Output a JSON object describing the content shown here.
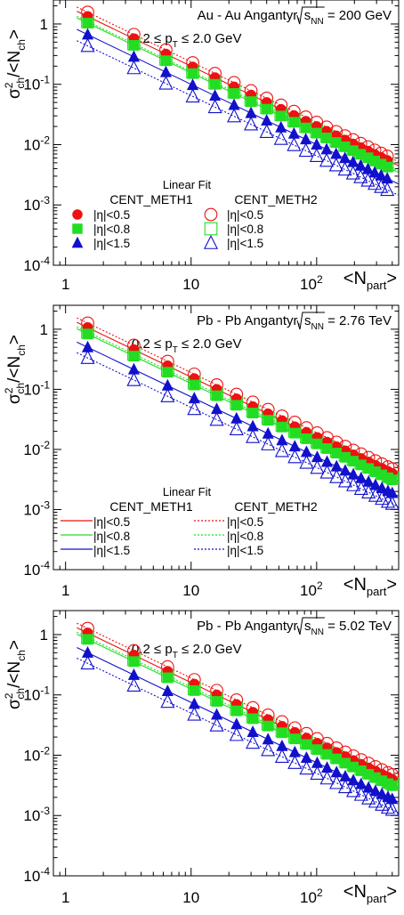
{
  "colors": {
    "eta05": "#ee1111",
    "eta08": "#22dd22",
    "eta15": "#1111cc",
    "axis": "#000000"
  },
  "marker_names": {
    "meth1": "filled markers",
    "meth2": "open markers"
  },
  "chart_data": [
    {
      "type": "scatter",
      "log_x": true,
      "log_y": true,
      "xlim": [
        0.8,
        450
      ],
      "ylim": [
        0.0001,
        2.5
      ],
      "x_ticks": [
        "1",
        "10"
      ],
      "x_tick_10e2_base": "10",
      "x_tick_10e2_exp": "2",
      "xlabel_main": "<N",
      "xlabel_sub": "part",
      "xlabel_end": ">",
      "ylabel_main": "σ",
      "ylabel_sup": "2",
      "ylabel_sub": "ch",
      "ylabel_mid": "/<N",
      "ylabel_sub2": "ch",
      "ylabel_end": ">",
      "y_tick_base": "10",
      "y_tick_exps": [
        "-1",
        "-2",
        "-3",
        "-4"
      ],
      "y_tick_one": "1",
      "title_pre": "Au - Au Angantyr,",
      "title_sqrt": "s",
      "title_sub": "NN",
      "title_post": " = 200 GeV",
      "cut_pre": "0.2 ≤ p",
      "cut_sub": "T",
      "cut_post": " ≤ 2.0 GeV",
      "legend": {
        "style": "markers",
        "heading": "Linear Fit",
        "col1": "CENT_METH1",
        "col2": "CENT_METH2",
        "rows": [
          "|η|<0.5",
          "|η|<0.8",
          "|η|<1.5"
        ]
      },
      "x": [
        1.5,
        3.5,
        6.3,
        10.3,
        15.5,
        22,
        30,
        40,
        52,
        66,
        82,
        100,
        120,
        143,
        168,
        195,
        224,
        256,
        290,
        326,
        365
      ],
      "series": [
        {
          "eta": "|η|<0.5",
          "method": "CENT_METH1",
          "a": 2.0,
          "b": 1.0
        },
        {
          "eta": "|η|<0.8",
          "method": "CENT_METH1",
          "a": 1.55,
          "b": 1.0
        },
        {
          "eta": "|η|<1.5",
          "method": "CENT_METH1",
          "a": 1.0,
          "b": 1.0
        },
        {
          "eta": "|η|<0.5",
          "method": "CENT_METH2",
          "a": 2.35,
          "b": 1.0
        },
        {
          "eta": "|η|<0.8",
          "method": "CENT_METH2",
          "a": 1.65,
          "b": 1.0
        },
        {
          "eta": "|η|<1.5",
          "method": "CENT_METH2",
          "a": 0.65,
          "b": 1.0
        }
      ]
    },
    {
      "type": "scatter",
      "log_x": true,
      "log_y": true,
      "xlim": [
        0.8,
        450
      ],
      "ylim": [
        0.0001,
        2.5
      ],
      "x_ticks": [
        "1",
        "10"
      ],
      "x_tick_10e2_base": "10",
      "x_tick_10e2_exp": "2",
      "xlabel_main": "<N",
      "xlabel_sub": "part",
      "xlabel_end": ">",
      "ylabel_main": "σ",
      "ylabel_sup": "2",
      "ylabel_sub": "ch",
      "ylabel_mid": "/<N",
      "ylabel_sub2": "ch",
      "ylabel_end": ">",
      "y_tick_base": "10",
      "y_tick_exps": [
        "-1",
        "-2",
        "-3",
        "-4"
      ],
      "y_tick_one": "1",
      "title_pre": "Pb - Pb Angantyr,",
      "title_sqrt": "s",
      "title_sub": "NN",
      "title_post": " = 2.76 TeV",
      "cut_pre": "0.2 ≤ p",
      "cut_sub": "T",
      "cut_post": " ≤ 2.0 GeV",
      "legend": {
        "style": "lines",
        "heading": "Linear Fit",
        "col1": "CENT_METH1",
        "col2": "CENT_METH2",
        "rows": [
          "|η|<0.5",
          "|η|<0.8",
          "|η|<1.5"
        ]
      },
      "x": [
        1.5,
        3.5,
        6.5,
        10.6,
        16,
        23,
        31,
        41,
        53,
        67,
        83,
        101,
        121,
        144,
        169,
        196,
        226,
        259,
        294,
        331,
        370,
        400
      ],
      "series": [
        {
          "eta": "|η|<0.5",
          "method": "CENT_METH1",
          "a": 1.6,
          "b": 1.0
        },
        {
          "eta": "|η|<0.8",
          "method": "CENT_METH1",
          "a": 1.25,
          "b": 1.0
        },
        {
          "eta": "|η|<1.5",
          "method": "CENT_METH1",
          "a": 0.75,
          "b": 1.0
        },
        {
          "eta": "|η|<0.5",
          "method": "CENT_METH2",
          "a": 1.9,
          "b": 1.0
        },
        {
          "eta": "|η|<0.8",
          "method": "CENT_METH2",
          "a": 1.35,
          "b": 1.0
        },
        {
          "eta": "|η|<1.5",
          "method": "CENT_METH2",
          "a": 0.5,
          "b": 1.0
        }
      ]
    },
    {
      "type": "scatter",
      "log_x": true,
      "log_y": true,
      "xlim": [
        0.8,
        450
      ],
      "ylim": [
        0.0001,
        2.5
      ],
      "x_ticks": [
        "1",
        "10"
      ],
      "x_tick_10e2_base": "10",
      "x_tick_10e2_exp": "2",
      "xlabel_main": "<N",
      "xlabel_sub": "part",
      "xlabel_end": ">",
      "ylabel_main": "σ",
      "ylabel_sup": "2",
      "ylabel_sub": "ch",
      "ylabel_mid": "/<N",
      "ylabel_sub2": "ch",
      "ylabel_end": ">",
      "y_tick_base": "10",
      "y_tick_exps": [
        "-1",
        "-2",
        "-3",
        "-4"
      ],
      "y_tick_one": "1",
      "title_pre": "Pb - Pb Angantyr,",
      "title_sqrt": "s",
      "title_sub": "NN",
      "title_post": " = 5.02 TeV",
      "cut_pre": "0.2 ≤ p",
      "cut_sub": "T",
      "cut_post": " ≤ 2.0 GeV",
      "legend": null,
      "x": [
        1.5,
        3.5,
        6.5,
        10.6,
        16,
        23,
        31,
        41,
        53,
        67,
        83,
        101,
        121,
        144,
        169,
        196,
        226,
        259,
        294,
        331,
        370,
        400
      ],
      "series": [
        {
          "eta": "|η|<0.5",
          "method": "CENT_METH1",
          "a": 1.6,
          "b": 1.0
        },
        {
          "eta": "|η|<0.8",
          "method": "CENT_METH1",
          "a": 1.25,
          "b": 1.0
        },
        {
          "eta": "|η|<1.5",
          "method": "CENT_METH1",
          "a": 0.75,
          "b": 1.0
        },
        {
          "eta": "|η|<0.5",
          "method": "CENT_METH2",
          "a": 1.9,
          "b": 1.0
        },
        {
          "eta": "|η|<0.8",
          "method": "CENT_METH2",
          "a": 1.35,
          "b": 1.0
        },
        {
          "eta": "|η|<1.5",
          "method": "CENT_METH2",
          "a": 0.5,
          "b": 1.0
        }
      ]
    }
  ]
}
